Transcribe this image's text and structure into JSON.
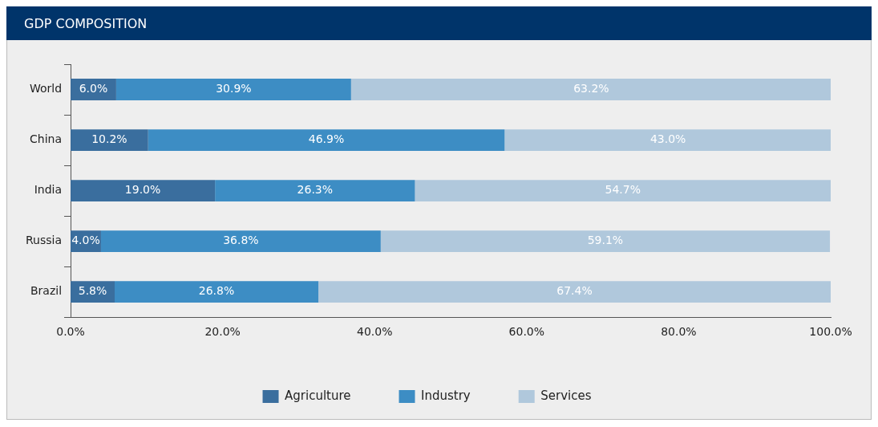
{
  "chart_data": {
    "type": "bar",
    "title": "GDP COMPOSITION",
    "orientation": "horizontal",
    "stacked": true,
    "categories": [
      "World",
      "China",
      "India",
      "Russia",
      "Brazil"
    ],
    "series": [
      {
        "name": "Agriculture",
        "color": "#3a6e9e",
        "values": [
          6.0,
          10.2,
          19.0,
          4.0,
          5.8
        ],
        "value_labels": [
          "6.0%",
          "10.2%",
          "19.0%",
          "4.0%",
          "5.8%"
        ]
      },
      {
        "name": "Industry",
        "color": "#3d8dc4",
        "values": [
          30.9,
          46.9,
          26.3,
          36.8,
          26.8
        ],
        "value_labels": [
          "30.9%",
          "46.9%",
          "26.3%",
          "36.8%",
          "26.8%"
        ]
      },
      {
        "name": "Services",
        "color": "#b0c8dc",
        "values": [
          63.2,
          43.0,
          54.7,
          59.1,
          67.4
        ],
        "value_labels": [
          "63.2%",
          "43.0%",
          "54.7%",
          "59.1%",
          "67.4%"
        ]
      }
    ],
    "xlim": [
      0,
      100
    ],
    "xticks": [
      {
        "value": 0,
        "label": "0.0%"
      },
      {
        "value": 20,
        "label": "20.0%"
      },
      {
        "value": 40,
        "label": "40.0%"
      },
      {
        "value": 60,
        "label": "60.0%"
      },
      {
        "value": 80,
        "label": "80.0%"
      },
      {
        "value": 100,
        "label": "100.0%"
      }
    ],
    "legend": "bottom"
  }
}
